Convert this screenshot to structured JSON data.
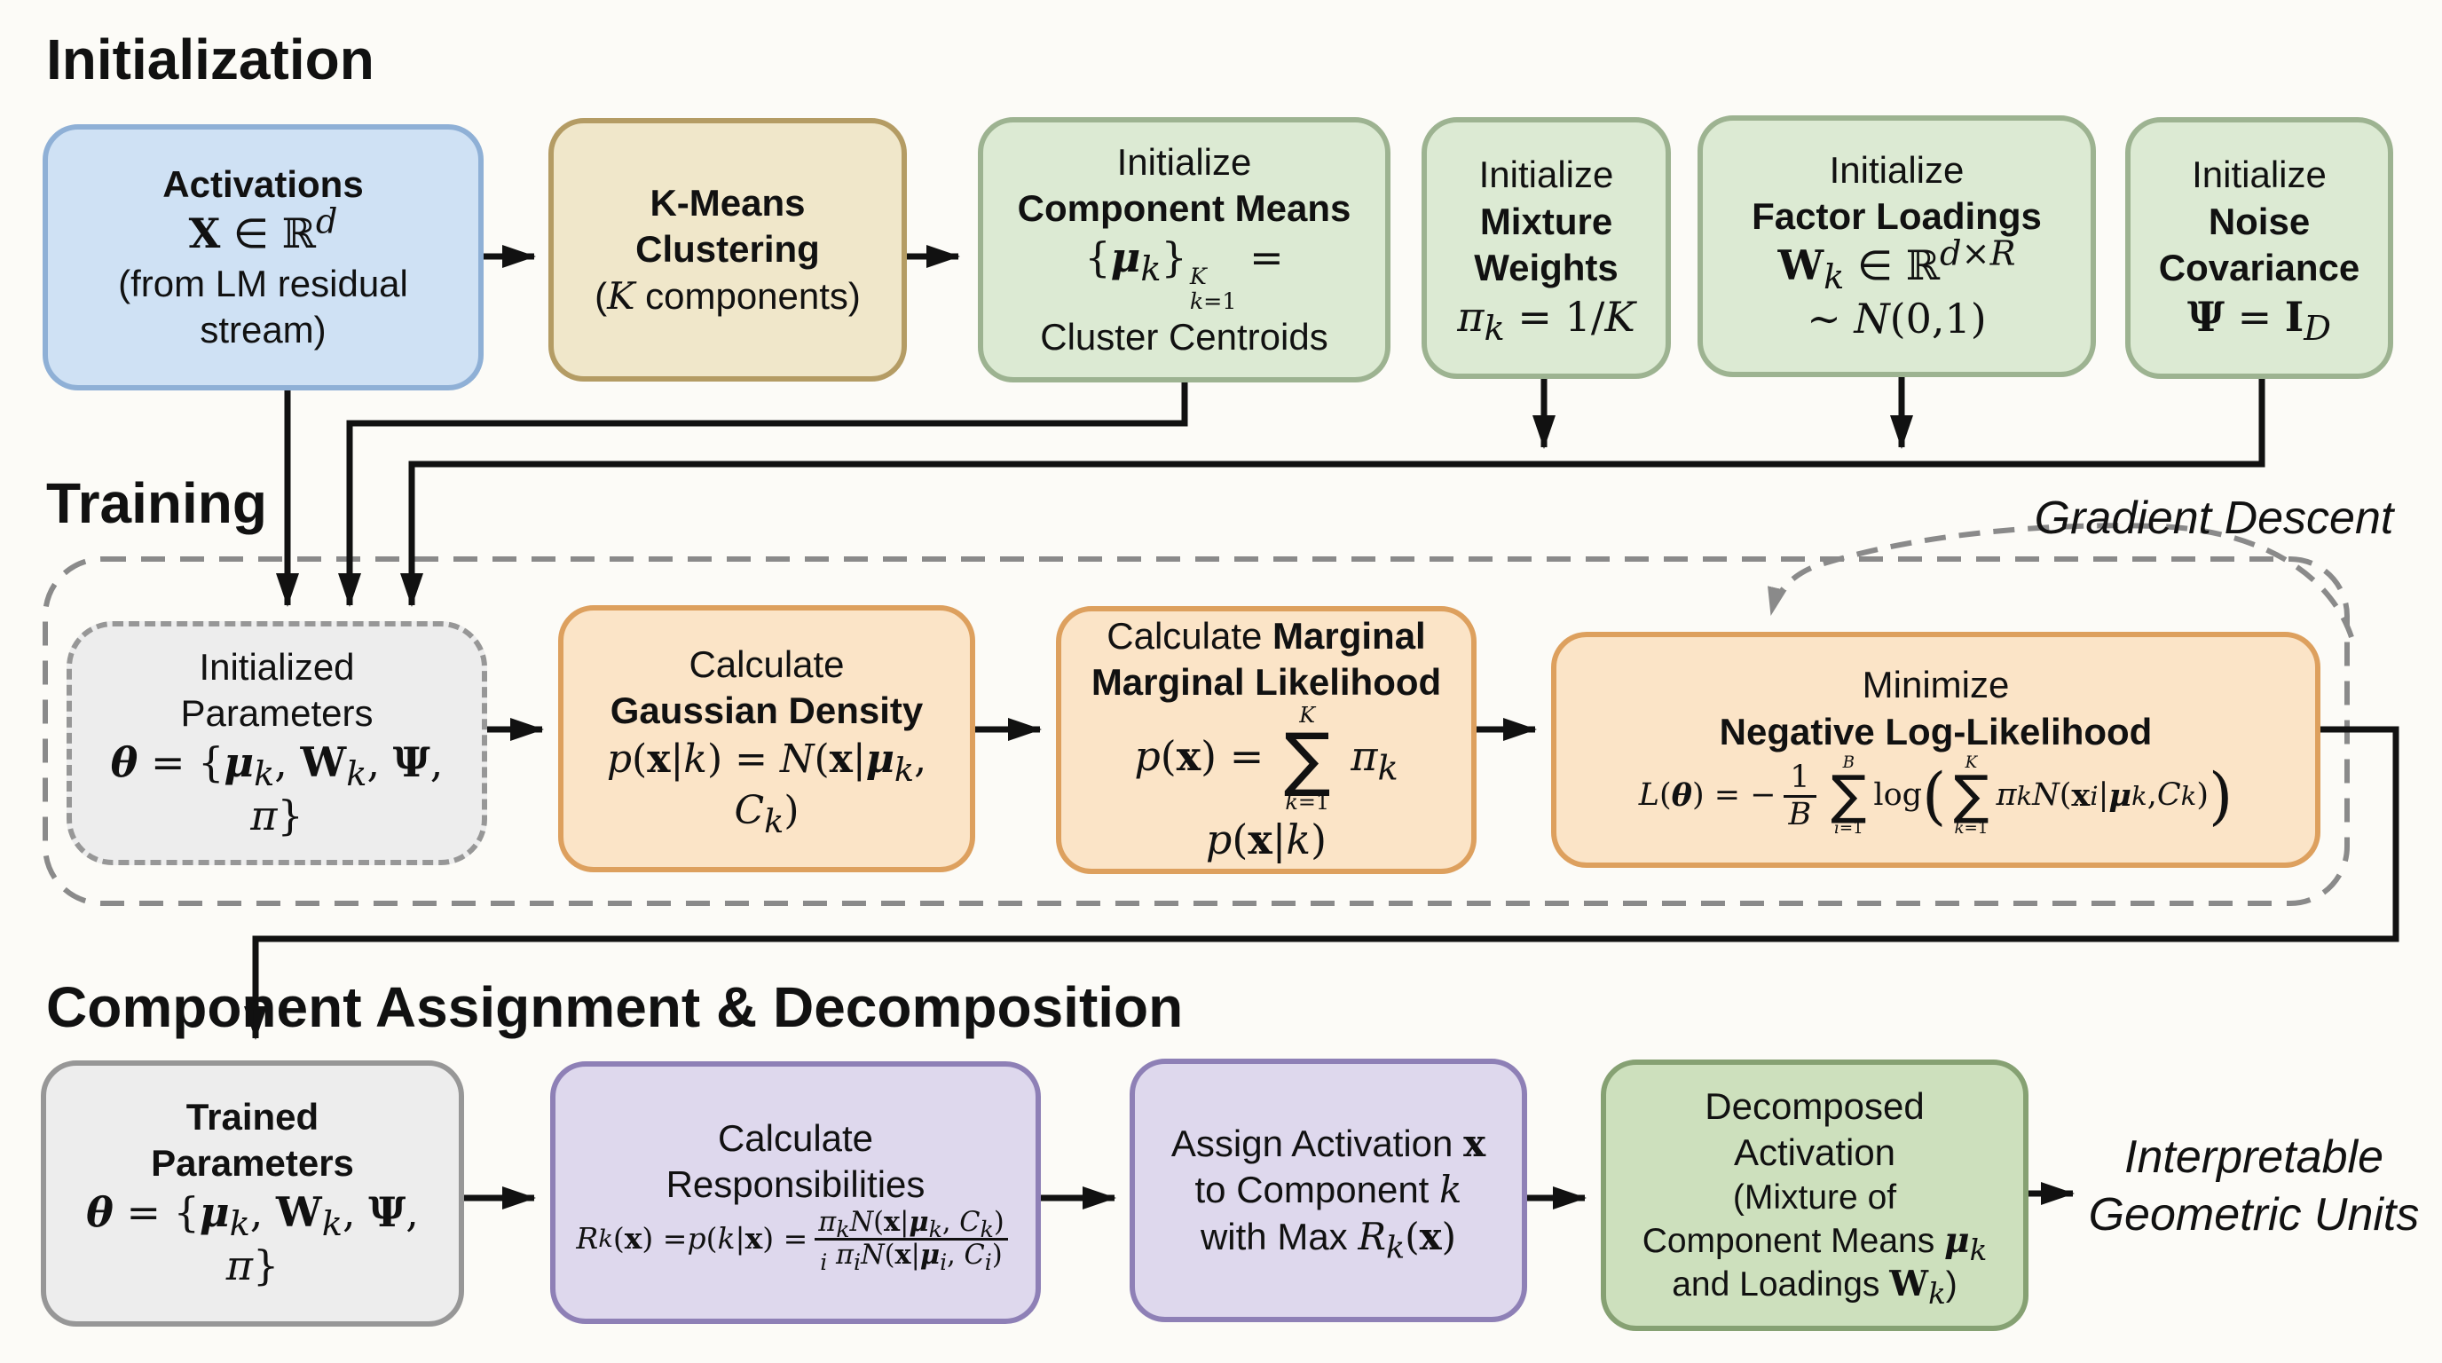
{
  "colors": {
    "bg": "#fcfbf7",
    "ink": "#111111",
    "dash": "#8a8a8a",
    "blue_fill": "#cfe1f4",
    "blue_border": "#8fb0d6",
    "tan_fill": "#f0e7ca",
    "tan_border": "#b49c64",
    "green_fill": "#dcead3",
    "green_border": "#9db391",
    "green2_fill": "#cde0bd",
    "green2_border": "#86a173",
    "orange_fill": "#fbe4c7",
    "orange_border": "#dda05e",
    "purple_fill": "#ded8ed",
    "purple_border": "#8e80b6",
    "gray_fill": "#ededed",
    "gray_border": "#979797"
  },
  "titles": {
    "initialization": "Initialization",
    "training": "Training",
    "assignment": "Component Assignment & Decomposition"
  },
  "labels": {
    "gradient_descent": "Gradient Descent",
    "output_lines": [
      {
        "cls": "ol",
        "html": "Interpretable"
      },
      {
        "cls": "ol",
        "html": "Geometric Units"
      }
    ]
  },
  "boxes": {
    "activations": {
      "lines": [
        {
          "cls": "t b",
          "html": "Activations"
        },
        {
          "cls": "f",
          "html": "<b>X</b> <span class='sp'>∈</span> ℝ<sup><i>d</i></sup>"
        },
        {
          "cls": "t",
          "html": "(from LM residual"
        },
        {
          "cls": "t",
          "html": "stream)"
        }
      ]
    },
    "kmeans": {
      "lines": [
        {
          "cls": "t b",
          "html": "K-Means"
        },
        {
          "cls": "t b",
          "html": "Clustering"
        },
        {
          "cls": "t",
          "html": "(<span class='f'><i>K</i></span> components)"
        }
      ]
    },
    "comp_means": {
      "lines": [
        {
          "cls": "t",
          "html": "Initialize"
        },
        {
          "cls": "t b",
          "html": "Component Means"
        },
        {
          "cls": "f",
          "html": "{<b><i>μ</i></b><sub><i>k</i></sub>}<span class='ss'><span><i>K</i></span><span><i>k</i>=1</span></span> ="
        },
        {
          "cls": "t",
          "html": "Cluster Centroids"
        }
      ]
    },
    "mix_weights": {
      "lines": [
        {
          "cls": "t",
          "html": "Initialize"
        },
        {
          "cls": "t b",
          "html": "Mixture"
        },
        {
          "cls": "t b",
          "html": "Weights"
        },
        {
          "cls": "f",
          "html": "<i>π</i><sub><i>k</i></sub> = 1/<i>K</i>"
        }
      ]
    },
    "factor_loadings": {
      "lines": [
        {
          "cls": "t",
          "html": "Initialize"
        },
        {
          "cls": "t b",
          "html": "Factor Loadings"
        },
        {
          "cls": "f",
          "html": "<b>W</b><sub><i>k</i></sub> <span class='sp'>∈</span> ℝ<sup><i>d</i>×<i>R</i></sup>"
        },
        {
          "cls": "f",
          "html": "∼ <i>N</i>(0,1)"
        }
      ]
    },
    "noise_cov": {
      "lines": [
        {
          "cls": "t",
          "html": "Initialize"
        },
        {
          "cls": "t b",
          "html": "Noise"
        },
        {
          "cls": "t b",
          "html": "Covariance"
        },
        {
          "cls": "f",
          "html": "<b>Ψ</b> = <b>I</b><sub><i>D</i></sub>"
        }
      ]
    },
    "init_params": {
      "lines": [
        {
          "cls": "t",
          "html": "Initialized"
        },
        {
          "cls": "t",
          "html": "Parameters"
        },
        {
          "cls": "f",
          "html": "<b><i>θ</i></b> = {<b><i>μ</i></b><sub><i>k</i></sub>, <b>W</b><sub><i>k</i></sub>, <b>Ψ</b>, <i>π</i>}"
        }
      ]
    },
    "gaussian": {
      "lines": [
        {
          "cls": "t",
          "html": "Calculate"
        },
        {
          "cls": "t b",
          "html": "Gaussian Density"
        },
        {
          "cls": "f fg",
          "html": "<i>p</i>(<b>x</b>|<i>k</i>) = <i>N</i>(<b>x</b>|<b><i>μ</i></b><sub><i>k</i></sub>, <i>C</i><sub><i>k</i></sub>)"
        }
      ]
    },
    "marginal": {
      "lines": [
        {
          "cls": "t",
          "html": "Calculate <b>Marginal</b>"
        },
        {
          "cls": "t b",
          "html": "Marginal Likelihood"
        },
        {
          "cls": "f",
          "html": "<i>p</i>(<b>x</b>) = <span class='sum'><span class='sl'><i>K</i></span><span class='sg'>∑</span><span class='sl'><i>k</i>=1</span></span> <i>π</i><sub><i>k</i></sub> <i>p</i>(<b>x</b>|<i>k</i>)"
        }
      ]
    },
    "minimize": {
      "lines": [
        {
          "cls": "t",
          "html": "Minimize"
        },
        {
          "cls": "t b",
          "html": "Negative Log-Likelihood"
        },
        {
          "cls": "f fm2",
          "html": "<i>L</i>(<b><i>θ</i></b>) = −<span class='frac'><span>1</span><span class='dn'><i>B</i></span></span><span class='sum'><span class='sl'><i>B</i></span><span class='sg'>∑</span><span class='sl'><i>i</i>=1</span></span>log<span class='bp'>(</span><span class='sum'><span class='sl'><i>K</i></span><span class='sg'>∑</span><span class='sl'><i>k</i>=1</span></span><i>π</i><sub><i>k</i></sub><i>N</i>(<b>x</b><sub><i>i</i></sub>|<b><i>μ</i></b><sub><i>k</i></sub>, <i>C</i><sub><i>k</i></sub>)<span class='bp'>)</span>"
        }
      ]
    },
    "trained": {
      "lines": [
        {
          "cls": "t b",
          "html": "Trained"
        },
        {
          "cls": "t b",
          "html": "Parameters"
        },
        {
          "cls": "f",
          "html": "<b><i>θ</i></b> = {<b><i>μ</i></b><sub><i>k</i></sub>, <b>W</b><sub><i>k</i></sub>, <b>Ψ</b>, <i>π</i>}"
        }
      ]
    },
    "responsibilities": {
      "lines": [
        {
          "cls": "t",
          "html": "Calculate"
        },
        {
          "cls": "t",
          "html": "Responsibilities"
        },
        {
          "cls": "f fr",
          "html": "<i>R</i><sub><i>k</i></sub>(<b>x</b>) = <i>p</i>(<i>k</i>|<b>x</b>) = <span class='frac'><span><i>π</i><sub><i>k</i></sub><i>N</i>(<b>x</b>|<b><i>μ</i></b><sub><i>k</i></sub>, <i>C</i><sub><i>k</i></sub>)</span><span class='dn'><sub><i>i</i></sub> <i>π</i><sub><i>i</i></sub><i>N</i>(<b>x</b>|<b><i>μ</i></b><sub><i>i</i></sub>, <i>C</i><sub><i>i</i></sub>)</span></span>"
        }
      ]
    },
    "assign": {
      "lines": [
        {
          "cls": "t",
          "html": "Assign Activation <span class='f'><b>x</b></span>"
        },
        {
          "cls": "t",
          "html": "to Component <span class='f'><i>k</i></span>"
        },
        {
          "cls": "t",
          "html": "with Max <span class='f'><i>R</i><sub><i>k</i></sub>(<b>x</b>)</span>"
        }
      ]
    },
    "decomposed": {
      "lines": [
        {
          "cls": "t",
          "html": "Decomposed"
        },
        {
          "cls": "t",
          "html": "Activation"
        },
        {
          "cls": "t sm",
          "html": "(Mixture of"
        },
        {
          "cls": "t sm",
          "html": "Component Means <span class='f'><b><i>μ</i></b><sub><i>k</i></sub></span>"
        },
        {
          "cls": "t sm",
          "html": "and Loadings <span class='f'><b>W</b><sub><i>k</i></sub></span>)"
        }
      ]
    }
  }
}
